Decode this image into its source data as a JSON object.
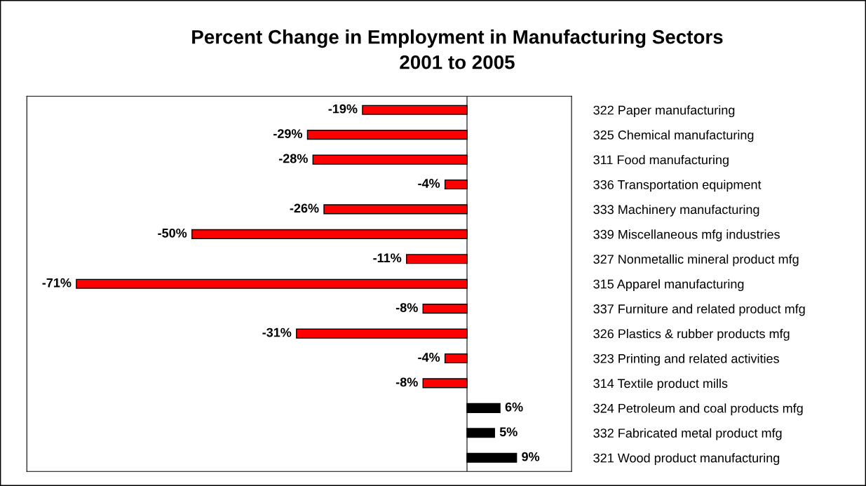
{
  "chart_data": {
    "type": "bar",
    "orientation": "horizontal",
    "title": "Percent Change in Employment in Manufacturing Sectors\n2001 to 2005",
    "categories": [
      "322 Paper manufacturing",
      "325 Chemical manufacturing",
      "311 Food manufacturing",
      "336 Transportation equipment",
      "333 Machinery manufacturing",
      "339 Miscellaneous mfg industries",
      "327 Nonmetallic mineral product mfg",
      "315 Apparel manufacturing",
      "337 Furniture and related product mfg",
      "326 Plastics & rubber products mfg",
      "323 Printing and related activities",
      "314 Textile product mills",
      "324 Petroleum and coal products mfg",
      "332 Fabricated metal product mfg",
      "321 Wood product manufacturing"
    ],
    "values": [
      -19,
      -29,
      -28,
      -4,
      -26,
      -50,
      -11,
      -71,
      -8,
      -31,
      -4,
      -8,
      6,
      5,
      9
    ],
    "value_labels": [
      "-19%",
      "-29%",
      "-28%",
      "-4%",
      "-26%",
      "-50%",
      "-11%",
      "-71%",
      "-8%",
      "-31%",
      "-4%",
      "-8%",
      "6%",
      "5%",
      "9%"
    ],
    "colors": [
      "#ff0000",
      "#ff0000",
      "#ff0000",
      "#ff0000",
      "#ff0000",
      "#ff0000",
      "#ff0000",
      "#ff0000",
      "#ff0000",
      "#ff0000",
      "#ff0000",
      "#ff0000",
      "#000000",
      "#000000",
      "#000000"
    ],
    "xlim": [
      -80,
      19
    ],
    "ref_lines": [
      {
        "axis": "x",
        "value": 0,
        "color": "#000000"
      }
    ],
    "grid": false,
    "legend": false
  }
}
